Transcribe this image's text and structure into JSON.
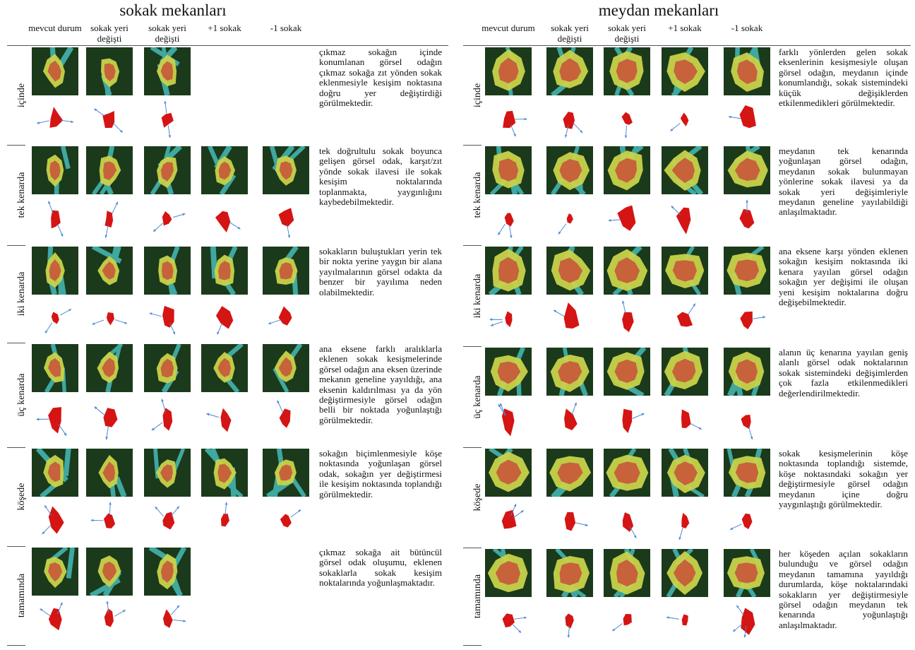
{
  "panels": [
    {
      "title": "sokak mekanları",
      "columns": [
        "mevcut durum",
        "sokak yeri değişti",
        "sokak yeri değişti",
        "+1 sokak",
        "-1 sokak"
      ],
      "rows": [
        {
          "label": "içinde",
          "cells": 3,
          "description": "çıkmaz sokağın içinde konumlanan görsel odağın çıkmaz sokağa zıt yönden sokak eklenmesiyle kesişim noktasına doğru yer değiştirdiği görülmektedir."
        },
        {
          "label": "tek kenarda",
          "cells": 5,
          "description": "tek doğrultulu sokak boyunca gelişen görsel odak, karşıt/zıt yönde sokak ilavesi ile sokak kesişim noktalarında toplanmakta, yaygınlığını kaybedebilmektedir."
        },
        {
          "label": "iki kenarda",
          "cells": 5,
          "description": "sokakların buluştukları yerin tek bir nokta yerine yaygın bir alana yayılmalarının görsel odakta da benzer bir yayılıma neden olabilmektedir."
        },
        {
          "label": "üç kenarda",
          "cells": 5,
          "description": "ana eksene farklı aralıklarla eklenen sokak kesişmelerinde görsel odağın ana eksen üzerinde mekanın geneline yayıldığı, ana eksenin kaldırılması ya da yön değiştirmesiyle görsel odağın belli bir noktada yoğunlaştığı görülmektedir."
        },
        {
          "label": "köşede",
          "cells": 5,
          "description": "sokağın biçimlenmesiyle köşe noktasında yoğunlaşan görsel odak, sokağın yer değiştirmesi ile kesişim noktasında toplandığı görülmektedir."
        },
        {
          "label": "tamamında",
          "cells": 3,
          "description": "çıkmaz sokağa ait bütüncül görsel odak oluşumu, eklenen sokaklarla sokak kesişim noktalarında yoğunlaşmaktadır."
        }
      ]
    },
    {
      "title": "meydan mekanları",
      "columns": [
        "mevcut durum",
        "sokak yeri değişti",
        "sokak yeri değişti",
        "+1 sokak",
        "-1 sokak"
      ],
      "rows": [
        {
          "label": "içinde",
          "cells": 5,
          "description": "farklı yönlerden gelen sokak eksenlerinin kesişmesiyle oluşan görsel odağın, meydanın içinde konumlandığı, sokak sistemindeki küçük değişiklerden etkilenmedikleri görülmektedir."
        },
        {
          "label": "tek kenarda",
          "cells": 5,
          "description": "meydanın tek kenarında yoğunlaşan görsel odağın, meydanın sokak bulunmayan yönlerine sokak ilavesi ya da sokak yeri değişimleriyle meydanın geneline yayılabildiği anlaşılmaktadır."
        },
        {
          "label": "iki kenarda",
          "cells": 5,
          "description": "ana eksene karşı yönden eklenen sokağın kesişim noktasında iki kenara yayılan görsel odağın sokağın yer değişimi ile oluşan yeni kesişim noktalarına doğru değişebilmektedir."
        },
        {
          "label": "üç kenarda",
          "cells": 5,
          "description": "alanın üç kenarına yayılan geniş alanlı görsel odak noktalarının sokak sistemindeki değişimlerden çok fazla etkilenmedikleri değerlendirilmektedir."
        },
        {
          "label": "köşede",
          "cells": 5,
          "description": "sokak kesişmelerinin köşe noktasında toplandığı sistemde, köşe noktasındaki sokağın yer değiştirmesiyle görsel odağın meydanın içine doğru yaygınlaştığı görülmektedir."
        },
        {
          "label": "tamamında",
          "cells": 5,
          "description": "her köşeden açılan sokakların bulunduğu ve görsel odağın meydanın tamamına yayıldığı durumlarda, köşe noktalarındaki sokakların yer değiştirmesiyle görsel odağın meydanın tek kenarında yoğunlaştığı anlaşılmaktadır."
        }
      ]
    }
  ],
  "colors": {
    "heatmap_background": "#1b3a1b",
    "heat_low": "#3fa8a0",
    "heat_mid": "#c8d24a",
    "heat_high": "#c8573a",
    "focus": "#d51414",
    "arrow": "#4a86d0"
  }
}
